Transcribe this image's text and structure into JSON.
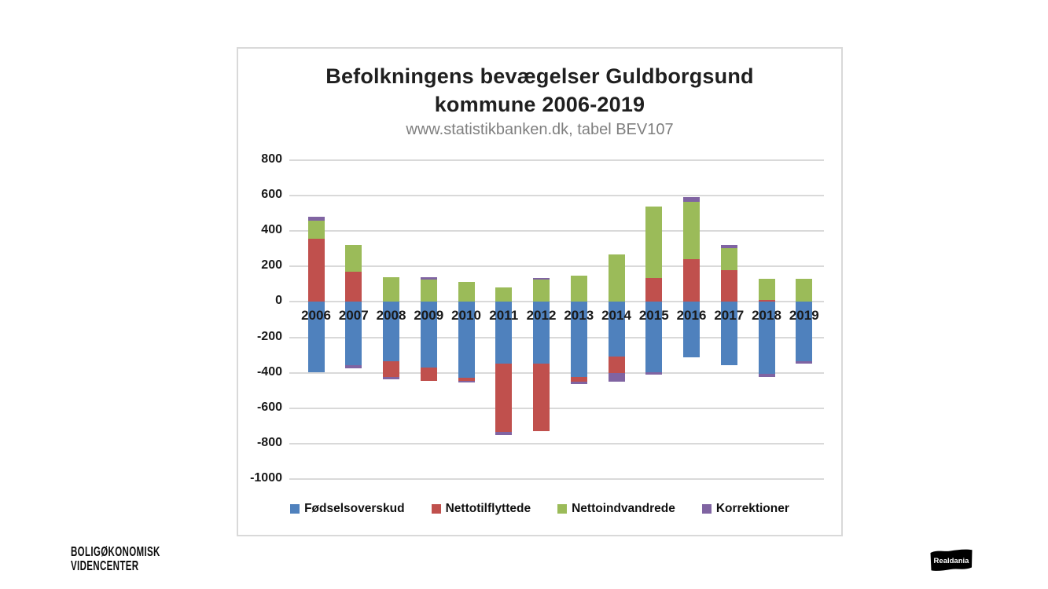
{
  "chart": {
    "title_line1": "Befolkningens bevægelser Guldborgsund",
    "title_line2": "kommune 2006-2019",
    "subtitle": "www.statistikbanken.dk, tabel BEV107"
  },
  "logos": {
    "boligokonomisk_line1": "BOLIGØKONOMISK",
    "boligokonomisk_line2": "VIDENCENTER",
    "realdania": "Realdania"
  },
  "chart_data": {
    "type": "bar",
    "stacked": true,
    "title": "Befolkningens bevægelser Guldborgsund kommune 2006-2019",
    "subtitle": "www.statistikbanken.dk, tabel BEV107",
    "categories": [
      "2006",
      "2007",
      "2008",
      "2009",
      "2010",
      "2011",
      "2012",
      "2013",
      "2014",
      "2015",
      "2016",
      "2017",
      "2018",
      "2019"
    ],
    "series": [
      {
        "name": "Fødselsoverskud",
        "color": "#4F81BD",
        "values": [
          -395,
          -355,
          -335,
          -370,
          -430,
          -350,
          -350,
          -425,
          -310,
          -395,
          -315,
          -355,
          -405,
          -335
        ]
      },
      {
        "name": "Nettotilflyttede",
        "color": "#C0504D",
        "values": [
          355,
          170,
          -90,
          -75,
          -15,
          -385,
          -380,
          -25,
          -90,
          135,
          240,
          180,
          10,
          0
        ]
      },
      {
        "name": "Nettoindvandrede",
        "color": "#9BBB59",
        "values": [
          105,
          150,
          140,
          125,
          115,
          80,
          125,
          150,
          270,
          405,
          325,
          125,
          120,
          130
        ]
      },
      {
        "name": "Korrektioner",
        "color": "#8064A2",
        "values": [
          20,
          -20,
          -10,
          15,
          -10,
          -15,
          10,
          -15,
          -50,
          -15,
          25,
          15,
          -20,
          -15
        ]
      }
    ],
    "ylim": [
      -1000,
      800
    ],
    "y_tick_step": 200,
    "grid": true,
    "gridline_color": "#D9D9D9",
    "legend_position": "bottom"
  }
}
